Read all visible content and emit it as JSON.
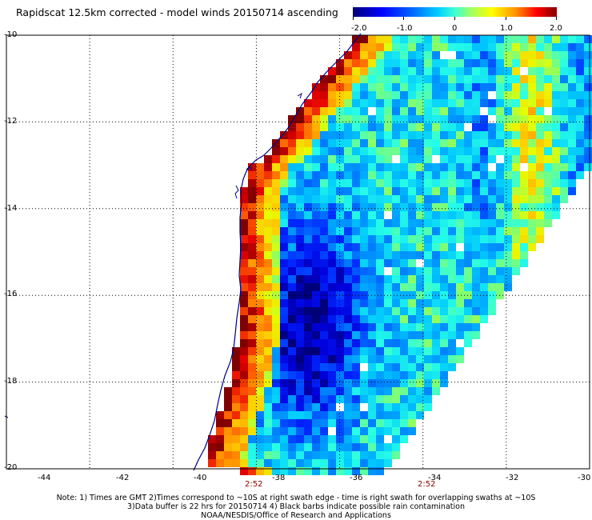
{
  "title": "Rapidscat 12.5km corrected - model winds 20150714 ascending",
  "colorbar": {
    "ticks": [
      "-2.0",
      "-1.0",
      "0",
      "1.0",
      "2.0"
    ],
    "range": [
      -2.0,
      2.0
    ]
  },
  "map": {
    "lon_range": [
      -44,
      -30
    ],
    "lat_range": [
      -20,
      -10
    ],
    "x_labels": [
      "-44",
      "-42",
      "-40",
      "-38",
      "-36",
      "-34",
      "-32",
      "-30"
    ],
    "y_labels": [
      "-10",
      "-12",
      "-14",
      "-16",
      "-18",
      "-20"
    ],
    "grid": "dotted",
    "swath_times": [
      "2:52",
      "2:52"
    ],
    "colors": {
      "strong_negative": "#0000c8",
      "negative": "#1060ff",
      "near_zero": "#00e0ff",
      "positive": "#ffff00",
      "strong_positive": "#ff0000",
      "max_positive": "#800000",
      "coastline": "#000080"
    }
  },
  "notes": [
    "Note: 1) Times are GMT 2)Times correspond to ~10S at right swath edge - time is right swath for overlapping swaths at ~10S",
    "3)Data buffer is 22 hrs for 20150714 4) Black barbs indicate possible rain contamination",
    "NOAA/NESDIS/Office of Research and Applications"
  ]
}
